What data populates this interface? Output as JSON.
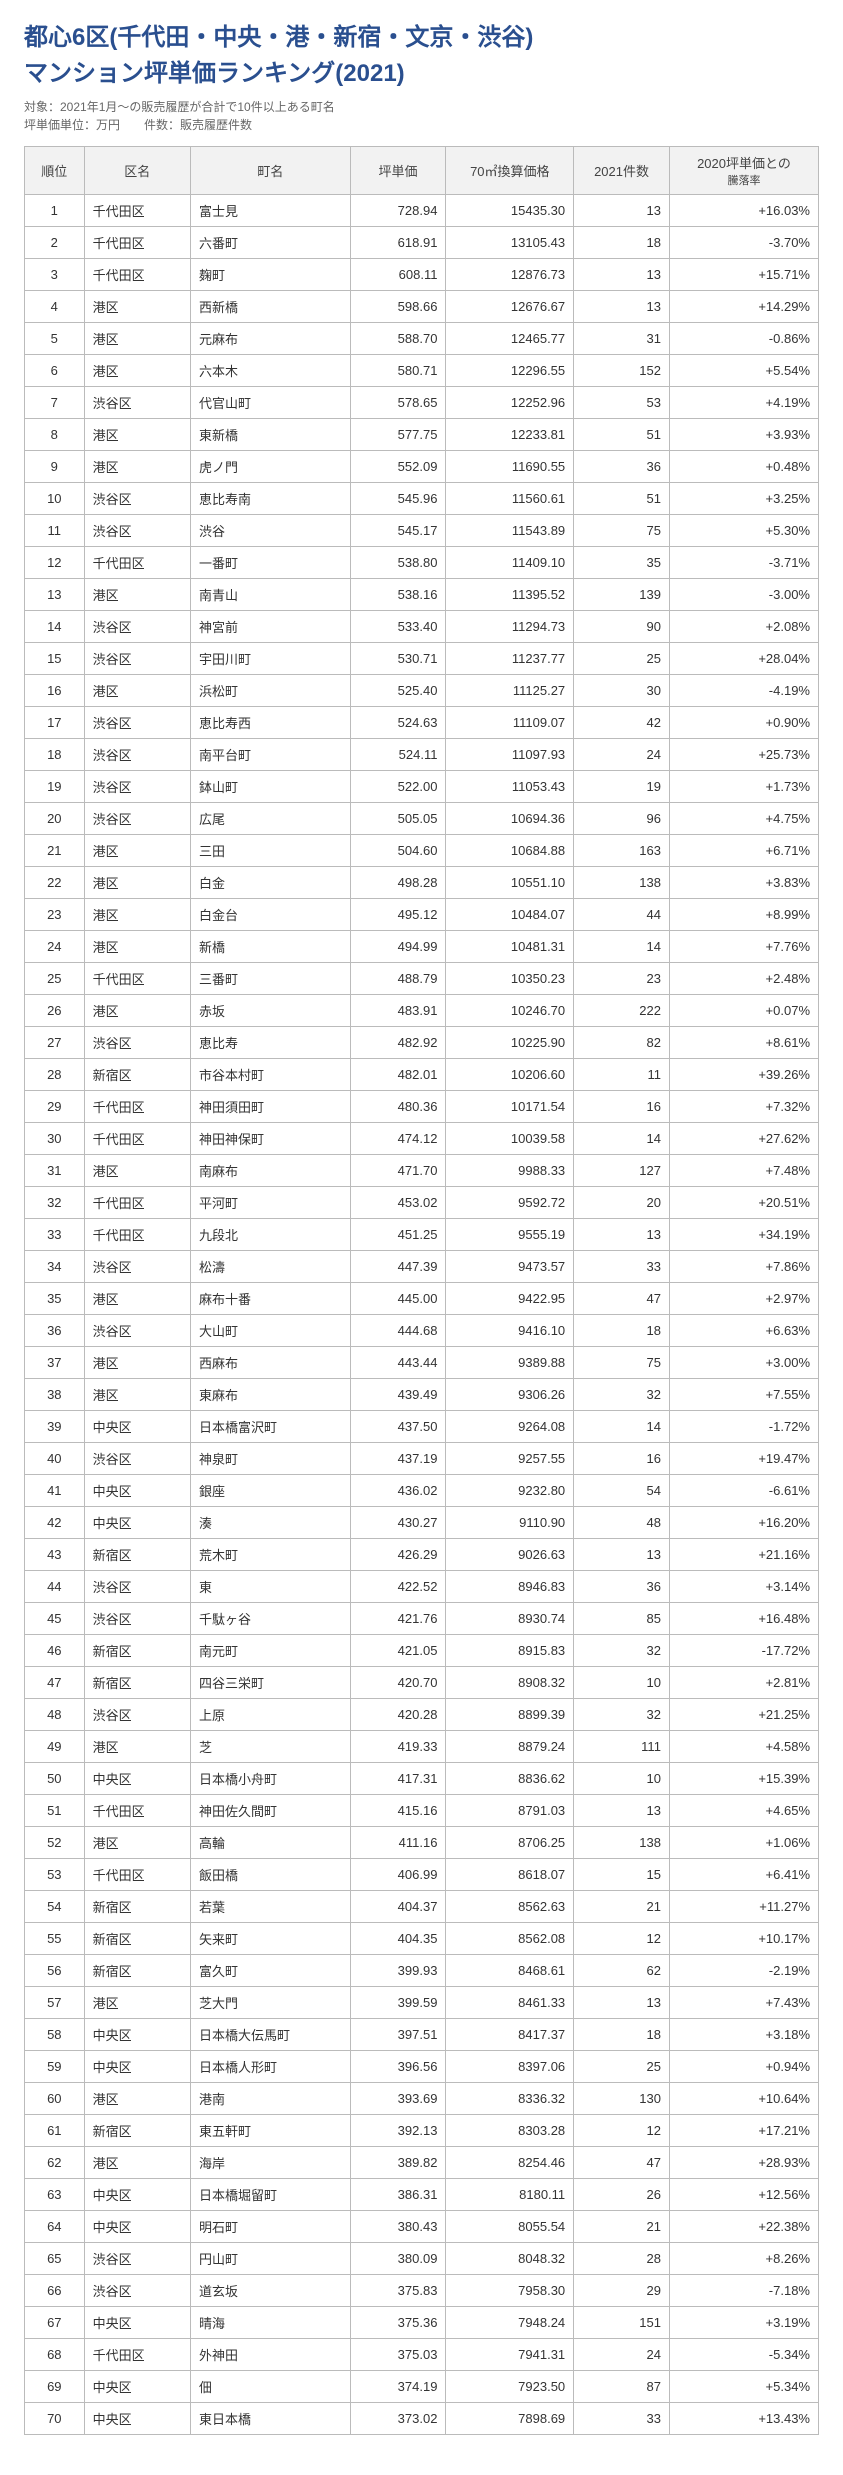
{
  "header": {
    "title_line1": "都心6区(千代田・中央・港・新宿・文京・渋谷)",
    "title_line2": "マンション坪単価ランキング(2021)",
    "subtitle": "対象：2021年1月～の販売履歴が合計で10件以上ある町名",
    "subtitle2": "坪単価単位：万円　　件数：販売履歴件数"
  },
  "columns": {
    "rank": "順位",
    "ward": "区名",
    "town": "町名",
    "price": "坪単価",
    "conv": "70㎡換算価格",
    "count": "2021件数",
    "rate_l1": "2020坪単価との",
    "rate_l2": "騰落率"
  },
  "colors": {
    "title": "#2a4f8f",
    "subtitle": "#666666",
    "header_bg": "#f2f2f2",
    "border": "#bbbbbb",
    "text": "#333333",
    "background": "#ffffff"
  },
  "rows": [
    {
      "rank": "1",
      "ward": "千代田区",
      "town": "富士見",
      "price": "728.94",
      "conv": "15435.30",
      "count": "13",
      "rate": "+16.03%"
    },
    {
      "rank": "2",
      "ward": "千代田区",
      "town": "六番町",
      "price": "618.91",
      "conv": "13105.43",
      "count": "18",
      "rate": "-3.70%"
    },
    {
      "rank": "3",
      "ward": "千代田区",
      "town": "麹町",
      "price": "608.11",
      "conv": "12876.73",
      "count": "13",
      "rate": "+15.71%"
    },
    {
      "rank": "4",
      "ward": "港区",
      "town": "西新橋",
      "price": "598.66",
      "conv": "12676.67",
      "count": "13",
      "rate": "+14.29%"
    },
    {
      "rank": "5",
      "ward": "港区",
      "town": "元麻布",
      "price": "588.70",
      "conv": "12465.77",
      "count": "31",
      "rate": "-0.86%"
    },
    {
      "rank": "6",
      "ward": "港区",
      "town": "六本木",
      "price": "580.71",
      "conv": "12296.55",
      "count": "152",
      "rate": "+5.54%"
    },
    {
      "rank": "7",
      "ward": "渋谷区",
      "town": "代官山町",
      "price": "578.65",
      "conv": "12252.96",
      "count": "53",
      "rate": "+4.19%"
    },
    {
      "rank": "8",
      "ward": "港区",
      "town": "東新橋",
      "price": "577.75",
      "conv": "12233.81",
      "count": "51",
      "rate": "+3.93%"
    },
    {
      "rank": "9",
      "ward": "港区",
      "town": "虎ノ門",
      "price": "552.09",
      "conv": "11690.55",
      "count": "36",
      "rate": "+0.48%"
    },
    {
      "rank": "10",
      "ward": "渋谷区",
      "town": "恵比寿南",
      "price": "545.96",
      "conv": "11560.61",
      "count": "51",
      "rate": "+3.25%"
    },
    {
      "rank": "11",
      "ward": "渋谷区",
      "town": "渋谷",
      "price": "545.17",
      "conv": "11543.89",
      "count": "75",
      "rate": "+5.30%"
    },
    {
      "rank": "12",
      "ward": "千代田区",
      "town": "一番町",
      "price": "538.80",
      "conv": "11409.10",
      "count": "35",
      "rate": "-3.71%"
    },
    {
      "rank": "13",
      "ward": "港区",
      "town": "南青山",
      "price": "538.16",
      "conv": "11395.52",
      "count": "139",
      "rate": "-3.00%"
    },
    {
      "rank": "14",
      "ward": "渋谷区",
      "town": "神宮前",
      "price": "533.40",
      "conv": "11294.73",
      "count": "90",
      "rate": "+2.08%"
    },
    {
      "rank": "15",
      "ward": "渋谷区",
      "town": "宇田川町",
      "price": "530.71",
      "conv": "11237.77",
      "count": "25",
      "rate": "+28.04%"
    },
    {
      "rank": "16",
      "ward": "港区",
      "town": "浜松町",
      "price": "525.40",
      "conv": "11125.27",
      "count": "30",
      "rate": "-4.19%"
    },
    {
      "rank": "17",
      "ward": "渋谷区",
      "town": "恵比寿西",
      "price": "524.63",
      "conv": "11109.07",
      "count": "42",
      "rate": "+0.90%"
    },
    {
      "rank": "18",
      "ward": "渋谷区",
      "town": "南平台町",
      "price": "524.11",
      "conv": "11097.93",
      "count": "24",
      "rate": "+25.73%"
    },
    {
      "rank": "19",
      "ward": "渋谷区",
      "town": "鉢山町",
      "price": "522.00",
      "conv": "11053.43",
      "count": "19",
      "rate": "+1.73%"
    },
    {
      "rank": "20",
      "ward": "渋谷区",
      "town": "広尾",
      "price": "505.05",
      "conv": "10694.36",
      "count": "96",
      "rate": "+4.75%"
    },
    {
      "rank": "21",
      "ward": "港区",
      "town": "三田",
      "price": "504.60",
      "conv": "10684.88",
      "count": "163",
      "rate": "+6.71%"
    },
    {
      "rank": "22",
      "ward": "港区",
      "town": "白金",
      "price": "498.28",
      "conv": "10551.10",
      "count": "138",
      "rate": "+3.83%"
    },
    {
      "rank": "23",
      "ward": "港区",
      "town": "白金台",
      "price": "495.12",
      "conv": "10484.07",
      "count": "44",
      "rate": "+8.99%"
    },
    {
      "rank": "24",
      "ward": "港区",
      "town": "新橋",
      "price": "494.99",
      "conv": "10481.31",
      "count": "14",
      "rate": "+7.76%"
    },
    {
      "rank": "25",
      "ward": "千代田区",
      "town": "三番町",
      "price": "488.79",
      "conv": "10350.23",
      "count": "23",
      "rate": "+2.48%"
    },
    {
      "rank": "26",
      "ward": "港区",
      "town": "赤坂",
      "price": "483.91",
      "conv": "10246.70",
      "count": "222",
      "rate": "+0.07%"
    },
    {
      "rank": "27",
      "ward": "渋谷区",
      "town": "恵比寿",
      "price": "482.92",
      "conv": "10225.90",
      "count": "82",
      "rate": "+8.61%"
    },
    {
      "rank": "28",
      "ward": "新宿区",
      "town": "市谷本村町",
      "price": "482.01",
      "conv": "10206.60",
      "count": "11",
      "rate": "+39.26%"
    },
    {
      "rank": "29",
      "ward": "千代田区",
      "town": "神田須田町",
      "price": "480.36",
      "conv": "10171.54",
      "count": "16",
      "rate": "+7.32%"
    },
    {
      "rank": "30",
      "ward": "千代田区",
      "town": "神田神保町",
      "price": "474.12",
      "conv": "10039.58",
      "count": "14",
      "rate": "+27.62%"
    },
    {
      "rank": "31",
      "ward": "港区",
      "town": "南麻布",
      "price": "471.70",
      "conv": "9988.33",
      "count": "127",
      "rate": "+7.48%"
    },
    {
      "rank": "32",
      "ward": "千代田区",
      "town": "平河町",
      "price": "453.02",
      "conv": "9592.72",
      "count": "20",
      "rate": "+20.51%"
    },
    {
      "rank": "33",
      "ward": "千代田区",
      "town": "九段北",
      "price": "451.25",
      "conv": "9555.19",
      "count": "13",
      "rate": "+34.19%"
    },
    {
      "rank": "34",
      "ward": "渋谷区",
      "town": "松濤",
      "price": "447.39",
      "conv": "9473.57",
      "count": "33",
      "rate": "+7.86%"
    },
    {
      "rank": "35",
      "ward": "港区",
      "town": "麻布十番",
      "price": "445.00",
      "conv": "9422.95",
      "count": "47",
      "rate": "+2.97%"
    },
    {
      "rank": "36",
      "ward": "渋谷区",
      "town": "大山町",
      "price": "444.68",
      "conv": "9416.10",
      "count": "18",
      "rate": "+6.63%"
    },
    {
      "rank": "37",
      "ward": "港区",
      "town": "西麻布",
      "price": "443.44",
      "conv": "9389.88",
      "count": "75",
      "rate": "+3.00%"
    },
    {
      "rank": "38",
      "ward": "港区",
      "town": "東麻布",
      "price": "439.49",
      "conv": "9306.26",
      "count": "32",
      "rate": "+7.55%"
    },
    {
      "rank": "39",
      "ward": "中央区",
      "town": "日本橋富沢町",
      "price": "437.50",
      "conv": "9264.08",
      "count": "14",
      "rate": "-1.72%"
    },
    {
      "rank": "40",
      "ward": "渋谷区",
      "town": "神泉町",
      "price": "437.19",
      "conv": "9257.55",
      "count": "16",
      "rate": "+19.47%"
    },
    {
      "rank": "41",
      "ward": "中央区",
      "town": "銀座",
      "price": "436.02",
      "conv": "9232.80",
      "count": "54",
      "rate": "-6.61%"
    },
    {
      "rank": "42",
      "ward": "中央区",
      "town": "湊",
      "price": "430.27",
      "conv": "9110.90",
      "count": "48",
      "rate": "+16.20%"
    },
    {
      "rank": "43",
      "ward": "新宿区",
      "town": "荒木町",
      "price": "426.29",
      "conv": "9026.63",
      "count": "13",
      "rate": "+21.16%"
    },
    {
      "rank": "44",
      "ward": "渋谷区",
      "town": "東",
      "price": "422.52",
      "conv": "8946.83",
      "count": "36",
      "rate": "+3.14%"
    },
    {
      "rank": "45",
      "ward": "渋谷区",
      "town": "千駄ヶ谷",
      "price": "421.76",
      "conv": "8930.74",
      "count": "85",
      "rate": "+16.48%"
    },
    {
      "rank": "46",
      "ward": "新宿区",
      "town": "南元町",
      "price": "421.05",
      "conv": "8915.83",
      "count": "32",
      "rate": "-17.72%"
    },
    {
      "rank": "47",
      "ward": "新宿区",
      "town": "四谷三栄町",
      "price": "420.70",
      "conv": "8908.32",
      "count": "10",
      "rate": "+2.81%"
    },
    {
      "rank": "48",
      "ward": "渋谷区",
      "town": "上原",
      "price": "420.28",
      "conv": "8899.39",
      "count": "32",
      "rate": "+21.25%"
    },
    {
      "rank": "49",
      "ward": "港区",
      "town": "芝",
      "price": "419.33",
      "conv": "8879.24",
      "count": "111",
      "rate": "+4.58%"
    },
    {
      "rank": "50",
      "ward": "中央区",
      "town": "日本橋小舟町",
      "price": "417.31",
      "conv": "8836.62",
      "count": "10",
      "rate": "+15.39%"
    },
    {
      "rank": "51",
      "ward": "千代田区",
      "town": "神田佐久間町",
      "price": "415.16",
      "conv": "8791.03",
      "count": "13",
      "rate": "+4.65%"
    },
    {
      "rank": "52",
      "ward": "港区",
      "town": "高輪",
      "price": "411.16",
      "conv": "8706.25",
      "count": "138",
      "rate": "+1.06%"
    },
    {
      "rank": "53",
      "ward": "千代田区",
      "town": "飯田橋",
      "price": "406.99",
      "conv": "8618.07",
      "count": "15",
      "rate": "+6.41%"
    },
    {
      "rank": "54",
      "ward": "新宿区",
      "town": "若葉",
      "price": "404.37",
      "conv": "8562.63",
      "count": "21",
      "rate": "+11.27%"
    },
    {
      "rank": "55",
      "ward": "新宿区",
      "town": "矢来町",
      "price": "404.35",
      "conv": "8562.08",
      "count": "12",
      "rate": "+10.17%"
    },
    {
      "rank": "56",
      "ward": "新宿区",
      "town": "富久町",
      "price": "399.93",
      "conv": "8468.61",
      "count": "62",
      "rate": "-2.19%"
    },
    {
      "rank": "57",
      "ward": "港区",
      "town": "芝大門",
      "price": "399.59",
      "conv": "8461.33",
      "count": "13",
      "rate": "+7.43%"
    },
    {
      "rank": "58",
      "ward": "中央区",
      "town": "日本橋大伝馬町",
      "price": "397.51",
      "conv": "8417.37",
      "count": "18",
      "rate": "+3.18%"
    },
    {
      "rank": "59",
      "ward": "中央区",
      "town": "日本橋人形町",
      "price": "396.56",
      "conv": "8397.06",
      "count": "25",
      "rate": "+0.94%"
    },
    {
      "rank": "60",
      "ward": "港区",
      "town": "港南",
      "price": "393.69",
      "conv": "8336.32",
      "count": "130",
      "rate": "+10.64%"
    },
    {
      "rank": "61",
      "ward": "新宿区",
      "town": "東五軒町",
      "price": "392.13",
      "conv": "8303.28",
      "count": "12",
      "rate": "+17.21%"
    },
    {
      "rank": "62",
      "ward": "港区",
      "town": "海岸",
      "price": "389.82",
      "conv": "8254.46",
      "count": "47",
      "rate": "+28.93%"
    },
    {
      "rank": "63",
      "ward": "中央区",
      "town": "日本橋堀留町",
      "price": "386.31",
      "conv": "8180.11",
      "count": "26",
      "rate": "+12.56%"
    },
    {
      "rank": "64",
      "ward": "中央区",
      "town": "明石町",
      "price": "380.43",
      "conv": "8055.54",
      "count": "21",
      "rate": "+22.38%"
    },
    {
      "rank": "65",
      "ward": "渋谷区",
      "town": "円山町",
      "price": "380.09",
      "conv": "8048.32",
      "count": "28",
      "rate": "+8.26%"
    },
    {
      "rank": "66",
      "ward": "渋谷区",
      "town": "道玄坂",
      "price": "375.83",
      "conv": "7958.30",
      "count": "29",
      "rate": "-7.18%"
    },
    {
      "rank": "67",
      "ward": "中央区",
      "town": "晴海",
      "price": "375.36",
      "conv": "7948.24",
      "count": "151",
      "rate": "+3.19%"
    },
    {
      "rank": "68",
      "ward": "千代田区",
      "town": "外神田",
      "price": "375.03",
      "conv": "7941.31",
      "count": "24",
      "rate": "-5.34%"
    },
    {
      "rank": "69",
      "ward": "中央区",
      "town": "佃",
      "price": "374.19",
      "conv": "7923.50",
      "count": "87",
      "rate": "+5.34%"
    },
    {
      "rank": "70",
      "ward": "中央区",
      "town": "東日本橋",
      "price": "373.02",
      "conv": "7898.69",
      "count": "33",
      "rate": "+13.43%"
    }
  ]
}
